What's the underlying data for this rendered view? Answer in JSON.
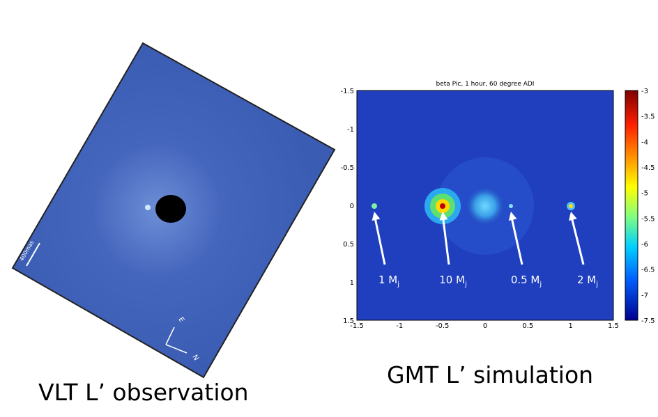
{
  "left_panel": {
    "scale_label": "400mas",
    "compass": [
      "E",
      "N"
    ],
    "caption": "VLT L’ observation"
  },
  "right_panel": {
    "title": "beta Pic, 1 hour, 60 degree ADI",
    "x_ticks": [
      "-1.5",
      "-1",
      "-0.5",
      "0",
      "0.5",
      "1",
      "1.5"
    ],
    "y_ticks": [
      "-1.5",
      "-1",
      "-0.5",
      "0",
      "0.5",
      "1",
      "1.5"
    ],
    "colorbar_ticks": [
      "-3",
      "-3.5",
      "-4",
      "-4.5",
      "-5",
      "-5.5",
      "-6",
      "-6.5",
      "-7",
      "-7.5"
    ],
    "annotations": [
      {
        "label": "1 M",
        "sub": "j"
      },
      {
        "label": "10 M",
        "sub": "j"
      },
      {
        "label": "0.5 M",
        "sub": "j"
      },
      {
        "label": "2 M",
        "sub": "j"
      }
    ],
    "caption": "GMT L’ simulation"
  }
}
